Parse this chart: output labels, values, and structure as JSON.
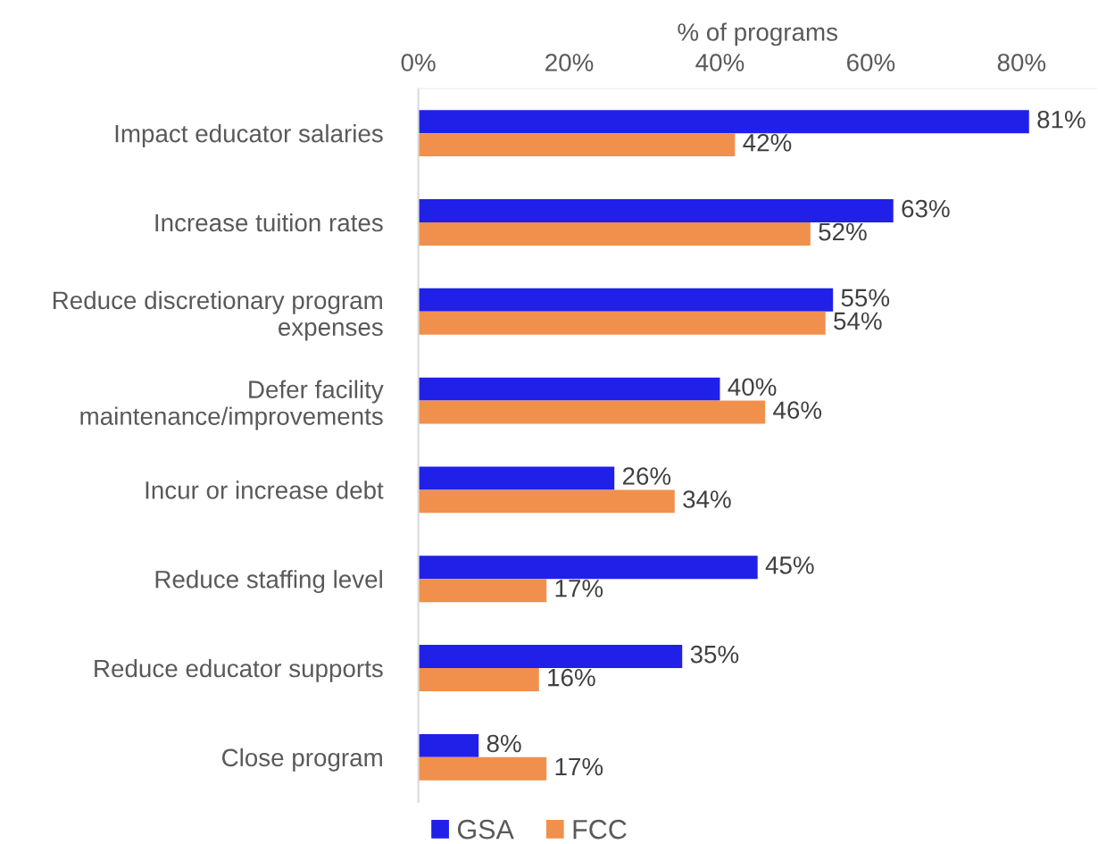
{
  "chart_data": {
    "type": "bar",
    "orientation": "horizontal",
    "xlabel": "% of programs",
    "categories": [
      "Impact educator salaries",
      "Increase tuition rates",
      "Reduce discretionary program\nexpenses",
      "Defer facility\nmaintenance/improvements",
      "Incur or increase debt",
      "Reduce staffing level",
      "Reduce educator supports",
      "Close program"
    ],
    "series": [
      {
        "name": "GSA",
        "color": "#2020e8",
        "values": [
          81,
          63,
          55,
          40,
          26,
          45,
          35,
          8
        ],
        "value_labels": [
          "81%",
          "63%",
          "55%",
          "40%",
          "26%",
          "45%",
          "35%",
          "8%"
        ]
      },
      {
        "name": "FCC",
        "color": "#f0904c",
        "values": [
          42,
          52,
          54,
          46,
          34,
          17,
          16,
          17
        ],
        "value_labels": [
          "42%",
          "52%",
          "54%",
          "46%",
          "34%",
          "17%",
          "16%",
          "17%"
        ]
      }
    ],
    "xlim": [
      0,
      90
    ],
    "xticks": [
      {
        "value": 0,
        "label": "0%"
      },
      {
        "value": 20,
        "label": "20%"
      },
      {
        "value": 40,
        "label": "40%"
      },
      {
        "value": 60,
        "label": "60%"
      },
      {
        "value": 80,
        "label": "80%"
      }
    ],
    "grid": false,
    "legend": "bottom"
  }
}
